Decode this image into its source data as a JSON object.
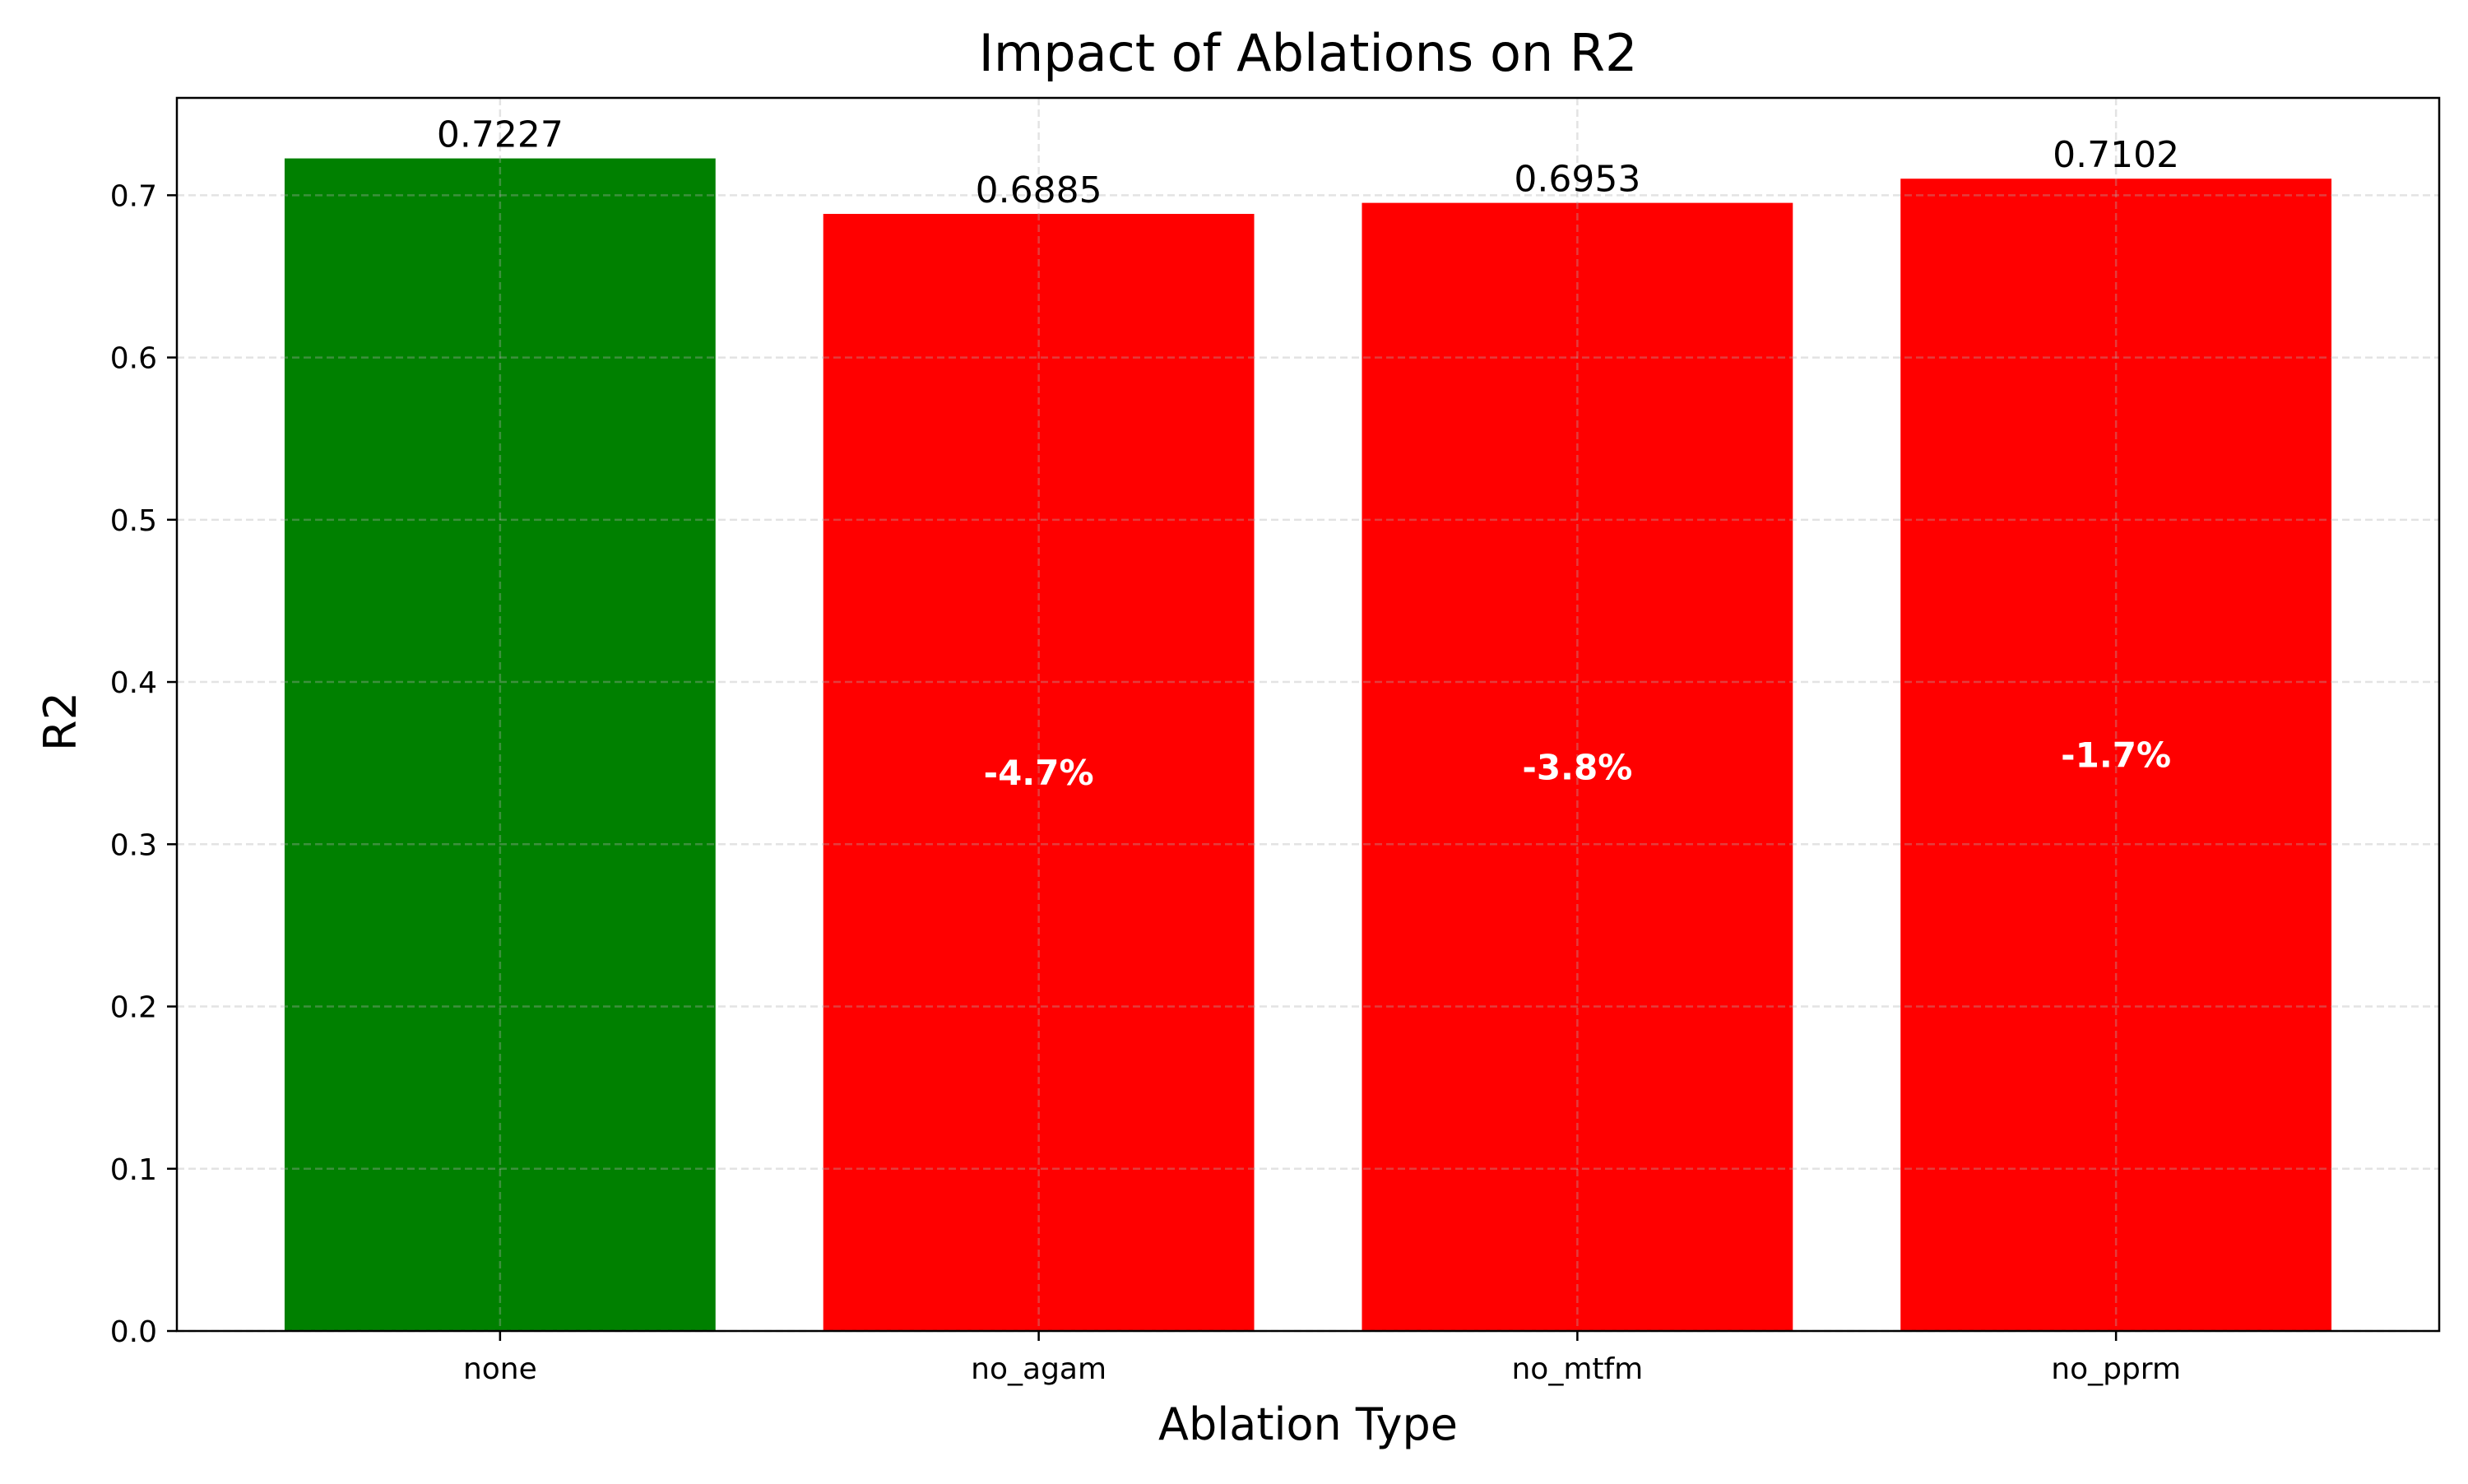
{
  "chart_data": {
    "type": "bar",
    "title": "Impact of Ablations on R2",
    "xlabel": "Ablation Type",
    "ylabel": "R2",
    "categories": [
      "none",
      "no_agam",
      "no_mtfm",
      "no_pprm"
    ],
    "values": [
      0.7227,
      0.6885,
      0.6953,
      0.7102
    ],
    "value_labels": [
      "0.7227",
      "0.6885",
      "0.6953",
      "0.7102"
    ],
    "change_labels": [
      "",
      "-4.7%",
      "-3.8%",
      "-1.7%"
    ],
    "bar_colors": [
      "#008000",
      "#ff0000",
      "#ff0000",
      "#ff0000"
    ],
    "ylim": [
      0,
      0.76
    ],
    "yticks": [
      0.0,
      0.1,
      0.2,
      0.3,
      0.4,
      0.5,
      0.6,
      0.7
    ],
    "ytick_labels": [
      "0.0",
      "0.1",
      "0.2",
      "0.3",
      "0.4",
      "0.5",
      "0.6",
      "0.7"
    ],
    "grid": true,
    "legend": false
  }
}
